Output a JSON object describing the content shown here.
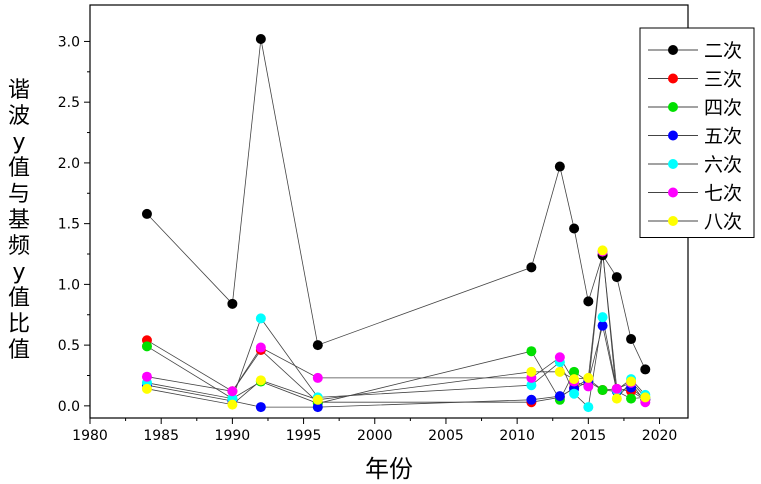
{
  "chart_data": {
    "type": "scatter",
    "title": "",
    "xlabel": "年份",
    "ylabel": "谐波y值与基频y值比值",
    "xlim": [
      1980,
      2022
    ],
    "ylim": [
      -0.1,
      3.3
    ],
    "xticks": [
      "1980",
      "1985",
      "1990",
      "1995",
      "2000",
      "2005",
      "2010",
      "2015",
      "2020"
    ],
    "yticks": [
      "0.0",
      "0.5",
      "1.0",
      "1.5",
      "2.0",
      "2.5",
      "3.0"
    ],
    "legend_position": "top-right",
    "x": [
      1984,
      1990,
      1992,
      1996,
      2011,
      2013,
      2014,
      2015,
      2016,
      2017,
      2018,
      2019
    ],
    "series": [
      {
        "name": "二次",
        "color": "#000000",
        "values": [
          1.58,
          0.84,
          3.02,
          0.5,
          1.14,
          1.97,
          1.46,
          0.86,
          1.24,
          1.06,
          0.55,
          0.3
        ]
      },
      {
        "name": "三次",
        "color": "#ff0000",
        "values": [
          0.54,
          0.12,
          0.46,
          0.03,
          0.03,
          0.07,
          0.15,
          0.22,
          0.13,
          0.14,
          0.12,
          0.05
        ]
      },
      {
        "name": "四次",
        "color": "#00e000",
        "values": [
          0.49,
          0.06,
          0.2,
          0.02,
          0.45,
          0.05,
          0.28,
          0.2,
          0.13,
          0.12,
          0.06,
          0.07
        ]
      },
      {
        "name": "五次",
        "color": "#0000ff",
        "values": [
          0.17,
          0.04,
          -0.01,
          -0.01,
          0.05,
          0.08,
          0.14,
          0.2,
          0.66,
          0.12,
          0.15,
          0.05
        ]
      },
      {
        "name": "六次",
        "color": "#00ffff",
        "values": [
          0.19,
          0.06,
          0.72,
          0.07,
          0.17,
          0.36,
          0.1,
          -0.01,
          0.73,
          0.13,
          0.22,
          0.09
        ]
      },
      {
        "name": "七次",
        "color": "#ff00ff",
        "values": [
          0.24,
          0.12,
          0.48,
          0.23,
          0.23,
          0.4,
          0.2,
          0.16,
          1.27,
          0.14,
          0.19,
          0.03
        ]
      },
      {
        "name": "八次",
        "color": "#ffff00",
        "values": [
          0.14,
          0.01,
          0.21,
          0.05,
          0.28,
          0.28,
          0.22,
          0.23,
          1.28,
          0.06,
          0.2,
          0.07
        ]
      }
    ]
  }
}
